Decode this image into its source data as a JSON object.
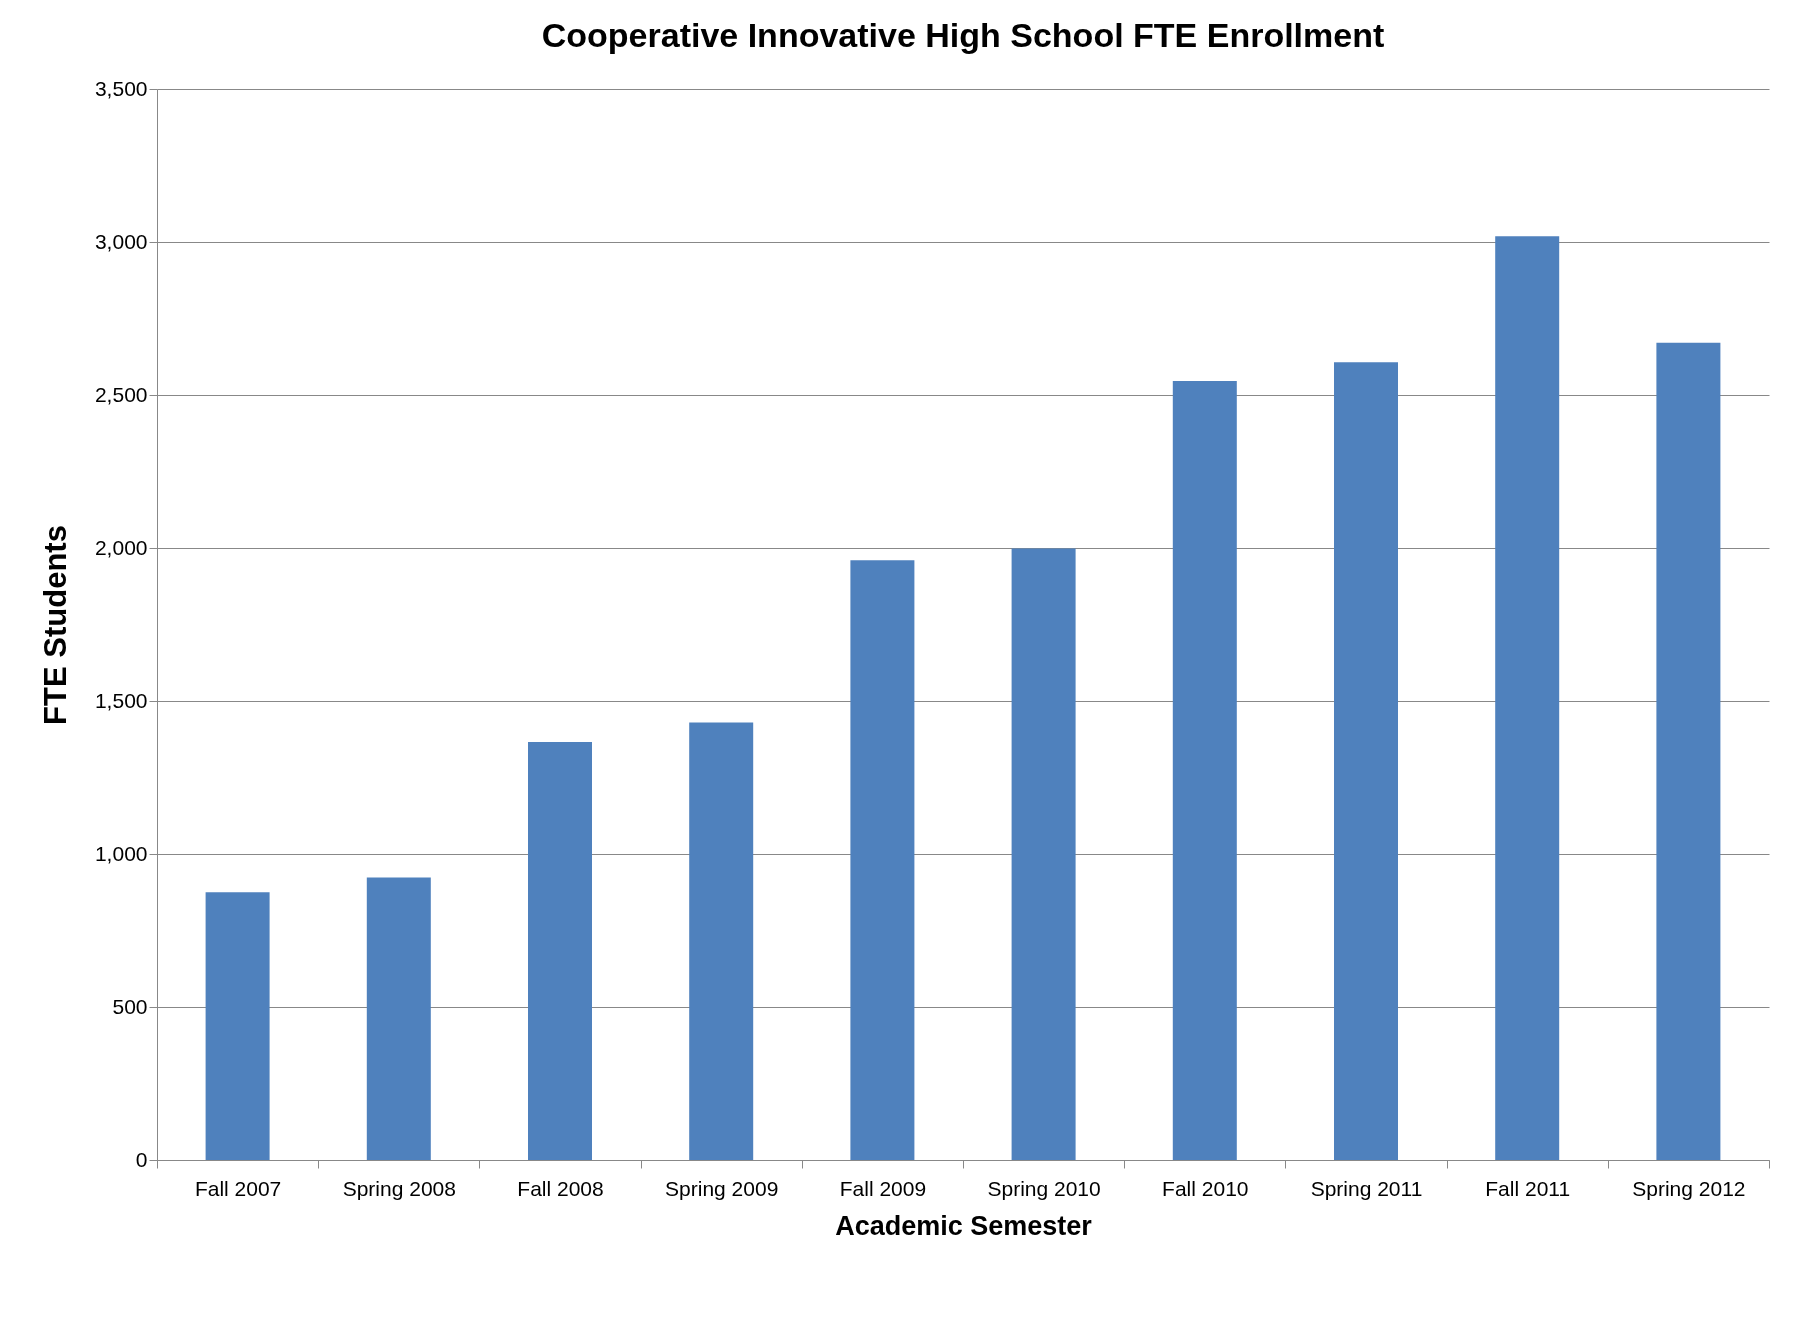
{
  "chart_data": {
    "type": "bar",
    "title": "Cooperative Innovative High School FTE Enrollment",
    "xlabel": "Academic Semester",
    "ylabel": "FTE Students",
    "categories": [
      "Fall 2007",
      "Spring 2008",
      "Fall 2008",
      "Spring 2009",
      "Fall 2009",
      "Spring 2010",
      "Fall 2010",
      "Spring 2011",
      "Fall 2011",
      "Spring 2012"
    ],
    "values": [
      875,
      923,
      1366,
      1430,
      1960,
      1998,
      2546,
      2607,
      3019,
      2671
    ],
    "color": "#4f81bd",
    "ylim": [
      0,
      3500
    ],
    "yticks": [
      {
        "value": 0,
        "label": "0"
      },
      {
        "value": 500,
        "label": "500"
      },
      {
        "value": 1000,
        "label": "1,000"
      },
      {
        "value": 1500,
        "label": "1,500"
      },
      {
        "value": 2000,
        "label": "2,000"
      },
      {
        "value": 2500,
        "label": "2,500"
      },
      {
        "value": 3000,
        "label": "3,000"
      },
      {
        "value": 3500,
        "label": "3,500"
      }
    ],
    "grid": "y"
  }
}
